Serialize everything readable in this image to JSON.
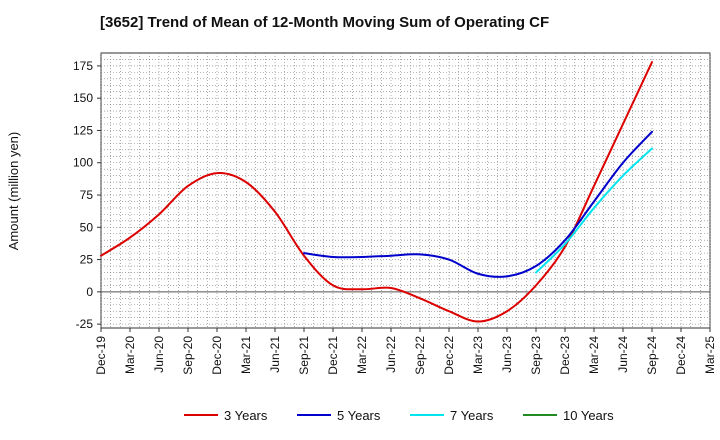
{
  "chart_data": {
    "type": "line",
    "title": "[3652]  Trend of Mean of 12-Month Moving Sum of Operating CF",
    "xlabel": "",
    "ylabel": "Amount (million yen)",
    "x_categories": [
      "Dec-19",
      "Mar-20",
      "Jun-20",
      "Sep-20",
      "Dec-20",
      "Mar-21",
      "Jun-21",
      "Sep-21",
      "Dec-21",
      "Mar-22",
      "Jun-22",
      "Sep-22",
      "Dec-22",
      "Mar-23",
      "Jun-23",
      "Sep-23",
      "Dec-23",
      "Mar-24",
      "Jun-24",
      "Sep-24",
      "Dec-24",
      "Mar-25"
    ],
    "y_ticks": [
      175,
      150,
      125,
      100,
      75,
      50,
      25,
      0,
      -25
    ],
    "ylim": [
      -28,
      185
    ],
    "grid": true,
    "legend_position": "bottom",
    "series": [
      {
        "name": "3 Years",
        "color": "#dd0000",
        "start_index": 0,
        "values": [
          28,
          42,
          60,
          82,
          92,
          85,
          62,
          28,
          5,
          2,
          3,
          -5,
          -15,
          -23,
          -15,
          5,
          35,
          82,
          130,
          178
        ]
      },
      {
        "name": "5 Years",
        "color": "#0000cc",
        "start_index": 7,
        "values": [
          30,
          27,
          27,
          28,
          29,
          25,
          14,
          12,
          20,
          40,
          70,
          100,
          124
        ]
      },
      {
        "name": "7 Years",
        "color": "#00e5ee",
        "start_index": 15,
        "values": [
          15,
          37,
          65,
          90,
          111
        ]
      },
      {
        "name": "10 Years",
        "color": "#228b22",
        "start_index": 0,
        "values": []
      }
    ]
  }
}
